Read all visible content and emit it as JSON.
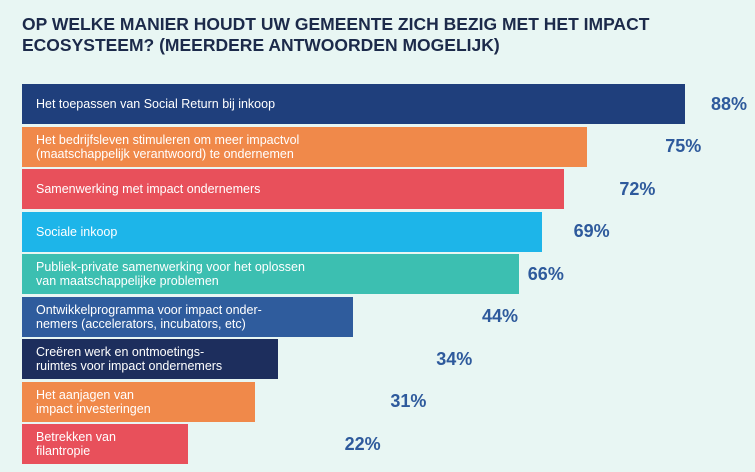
{
  "chart_data": {
    "type": "bar",
    "orientation": "horizontal",
    "title": "OP WELKE MANIER HOUDT UW GEMEENTE ZICH BEZIG MET HET IMPACT ECOSYSTEEM? (MEERDERE ANTWOORDEN MOGELIJK)",
    "categories": [
      "Het toepassen van Social Return bij inkoop",
      "Het bedrijfsleven stimuleren om meer impactvol\n(maatschappelijk verantwoord) te ondernemen",
      "Samenwerking met impact ondernemers",
      "Sociale inkoop",
      "Publiek-private samenwerking voor het oplossen\nvan maatschappelijke problemen",
      "Ontwikkelprogramma voor impact onder-\nnemers (accelerators, incubators, etc)",
      "Creëren werk en ontmoetings-\nruimtes voor impact ondernemers",
      "Het aanjagen van\nimpact investeringen",
      "Betrekken van\nfilantropie"
    ],
    "values": [
      88,
      75,
      72,
      69,
      66,
      44,
      34,
      31,
      22
    ],
    "value_labels": [
      "88%",
      "75%",
      "72%",
      "69%",
      "66%",
      "44%",
      "34%",
      "31%",
      "22%"
    ],
    "colors": [
      "#1f3f7c",
      "#f0894a",
      "#e8505b",
      "#1db5e9",
      "#3cbfb1",
      "#2f5c9d",
      "#1d2e5d",
      "#f0894a",
      "#e8505b"
    ]
  }
}
